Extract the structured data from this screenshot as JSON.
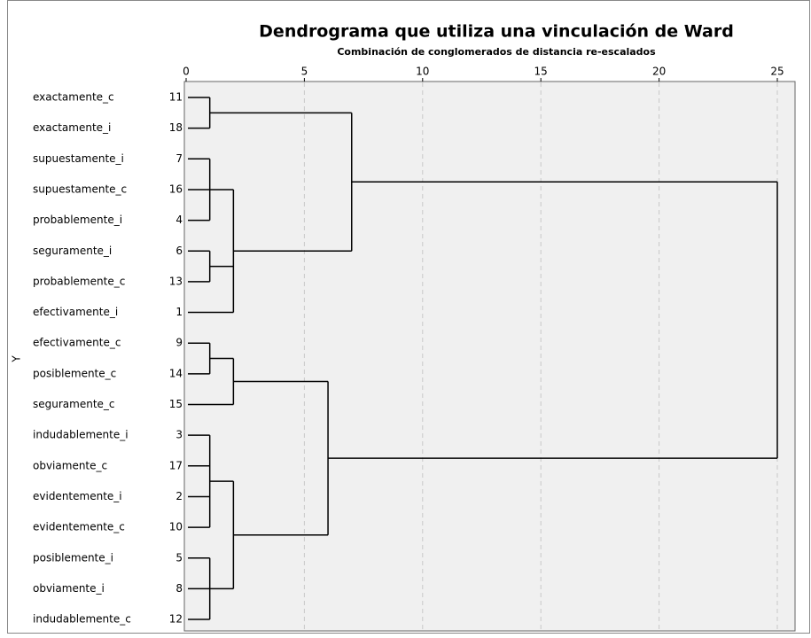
{
  "chart_data": {
    "type": "dendrogram",
    "title": "Dendrograma que utiliza una vinculación de Ward",
    "subtitle": "Combinación de conglomerados de distancia re-escalados",
    "ylabel": "Y",
    "xlim": [
      0,
      25
    ],
    "xticks": [
      0,
      5,
      10,
      15,
      20,
      25
    ],
    "grid": true,
    "color": "#000000",
    "tree": {
      "height": 25,
      "children": [
        {
          "height": 7,
          "children": [
            {
              "height": 1,
              "children": [
                {
                  "label": "exactamente_c",
                  "case": 11
                },
                {
                  "label": "exactamente_i",
                  "case": 18
                }
              ]
            },
            {
              "height": 2,
              "children": [
                {
                  "height": 1,
                  "children": [
                    {
                      "label": "supuestamente_i",
                      "case": 7
                    },
                    {
                      "label": "supuestamente_c",
                      "case": 16
                    },
                    {
                      "label": "probablemente_i",
                      "case": 4
                    }
                  ]
                },
                {
                  "height": 1,
                  "children": [
                    {
                      "label": "seguramente_i",
                      "case": 6
                    },
                    {
                      "label": "probablemente_c",
                      "case": 13
                    }
                  ]
                },
                {
                  "label": "efectivamente_i",
                  "case": 1
                }
              ]
            }
          ]
        },
        {
          "height": 6,
          "children": [
            {
              "height": 2,
              "children": [
                {
                  "height": 1,
                  "children": [
                    {
                      "label": "efectivamente_c",
                      "case": 9
                    },
                    {
                      "label": "posiblemente_c",
                      "case": 14
                    }
                  ]
                },
                {
                  "label": "seguramente_c",
                  "case": 15
                }
              ]
            },
            {
              "height": 2,
              "children": [
                {
                  "height": 1,
                  "children": [
                    {
                      "label": "indudablemente_i",
                      "case": 3
                    },
                    {
                      "label": "obviamente_c",
                      "case": 17
                    },
                    {
                      "label": "evidentemente_i",
                      "case": 2
                    },
                    {
                      "label": "evidentemente_c",
                      "case": 10
                    }
                  ]
                },
                {
                  "height": 1,
                  "children": [
                    {
                      "label": "posiblemente_i",
                      "case": 5
                    },
                    {
                      "label": "obviamente_i",
                      "case": 8
                    },
                    {
                      "label": "indudablemente_c",
                      "case": 12
                    }
                  ]
                }
              ]
            }
          ]
        }
      ]
    }
  }
}
